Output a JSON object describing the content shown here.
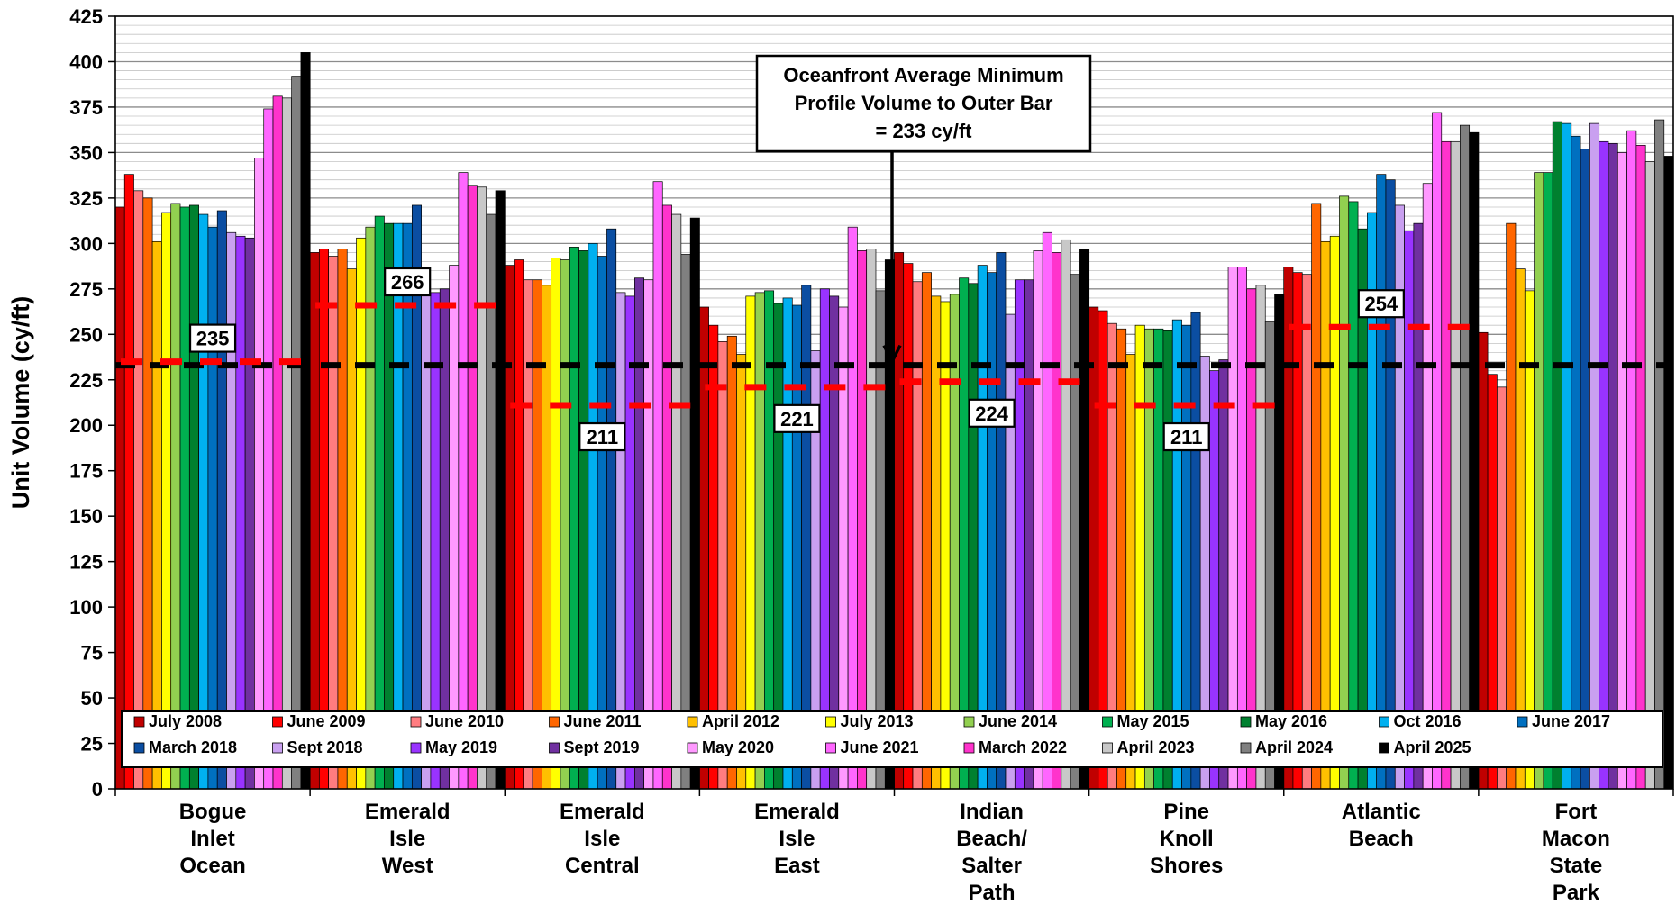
{
  "chart_data": {
    "type": "bar",
    "ylabel": "Unit Volume (cy/ft)",
    "ylim": [
      0,
      425
    ],
    "yticks": [
      0,
      25,
      50,
      75,
      100,
      125,
      150,
      175,
      200,
      225,
      250,
      275,
      300,
      325,
      350,
      375,
      400,
      425
    ],
    "grid": "horizontal",
    "legend_position": "bottom",
    "categories": [
      [
        "Bogue",
        "Inlet",
        "Ocean"
      ],
      [
        "Emerald",
        "Isle",
        "West"
      ],
      [
        "Emerald",
        "Isle",
        "Central"
      ],
      [
        "Emerald",
        "Isle",
        "East"
      ],
      [
        "Indian",
        "Beach/",
        "Salter",
        "Path"
      ],
      [
        "Pine",
        "Knoll",
        "Shores"
      ],
      [
        "Atlantic",
        "Beach"
      ],
      [
        "Fort",
        "Macon",
        "State",
        "Park"
      ]
    ],
    "series": [
      {
        "name": "July 2008",
        "color": "#C00000",
        "values": [
          320,
          295,
          288,
          265,
          295,
          265,
          287,
          251
        ]
      },
      {
        "name": "June 2009",
        "color": "#FF0000",
        "values": [
          338,
          297,
          291,
          255,
          289,
          263,
          284,
          228
        ]
      },
      {
        "name": "June 2010",
        "color": "#FF7C80",
        "values": [
          329,
          293,
          280,
          246,
          279,
          256,
          283,
          221
        ]
      },
      {
        "name": "June 2011",
        "color": "#FF6600",
        "values": [
          325,
          297,
          280,
          249,
          284,
          253,
          322,
          311
        ]
      },
      {
        "name": "April 2012",
        "color": "#FFC000",
        "values": [
          301,
          286,
          277,
          239,
          271,
          239,
          301,
          286
        ]
      },
      {
        "name": "July 2013",
        "color": "#FFFF00",
        "values": [
          317,
          303,
          292,
          271,
          268,
          255,
          304,
          274
        ]
      },
      {
        "name": "June 2014",
        "color": "#92D050",
        "values": [
          322,
          309,
          291,
          273,
          272,
          253,
          326,
          339
        ]
      },
      {
        "name": "May 2015",
        "color": "#00B050",
        "values": [
          320,
          315,
          298,
          274,
          281,
          253,
          323,
          339
        ]
      },
      {
        "name": "May 2016",
        "color": "#00802F",
        "values": [
          321,
          311,
          296,
          267,
          278,
          252,
          308,
          367
        ]
      },
      {
        "name": "Oct 2016",
        "color": "#00B0F0",
        "values": [
          316,
          311,
          300,
          270,
          288,
          258,
          317,
          366
        ]
      },
      {
        "name": "June 2017",
        "color": "#0070C0",
        "values": [
          309,
          311,
          293,
          266,
          284,
          255,
          338,
          359
        ]
      },
      {
        "name": "March 2018",
        "color": "#0B4EA2",
        "values": [
          318,
          321,
          308,
          277,
          295,
          262,
          335,
          352
        ]
      },
      {
        "name": "Sept 2018",
        "color": "#C9A0F0",
        "values": [
          306,
          272,
          273,
          241,
          261,
          238,
          321,
          366
        ]
      },
      {
        "name": "May 2019",
        "color": "#9933FF",
        "values": [
          304,
          273,
          271,
          275,
          280,
          230,
          307,
          356
        ]
      },
      {
        "name": "Sept 2019",
        "color": "#7030A0",
        "values": [
          303,
          275,
          281,
          271,
          280,
          236,
          311,
          355
        ]
      },
      {
        "name": "May 2020",
        "color": "#FF99FF",
        "values": [
          347,
          288,
          280,
          265,
          296,
          287,
          333,
          350
        ]
      },
      {
        "name": "June 2021",
        "color": "#FF66FF",
        "values": [
          374,
          339,
          334,
          309,
          306,
          287,
          372,
          362
        ]
      },
      {
        "name": "March 2022",
        "color": "#FF33CC",
        "values": [
          381,
          332,
          321,
          296,
          295,
          275,
          356,
          354
        ]
      },
      {
        "name": "April 2023",
        "color": "#C8C8C8",
        "values": [
          380,
          331,
          316,
          297,
          302,
          277,
          356,
          345
        ]
      },
      {
        "name": "April 2024",
        "color": "#808080",
        "values": [
          392,
          316,
          294,
          274,
          283,
          257,
          365,
          368
        ]
      },
      {
        "name": "April 2025",
        "color": "#000000",
        "values": [
          405,
          329,
          314,
          291,
          297,
          272,
          361,
          348
        ]
      }
    ],
    "reference_lines": {
      "oceanfront_average": {
        "value": 233,
        "color": "#000000"
      },
      "reach_minimums": [
        {
          "category_index": 0,
          "value": 235,
          "label": "235"
        },
        {
          "category_index": 1,
          "value": 266,
          "label": "266"
        },
        {
          "category_index": 2,
          "value": 211,
          "label": "211"
        },
        {
          "category_index": 3,
          "value": 221,
          "label": "221"
        },
        {
          "category_index": 4,
          "value": 224,
          "label": "224"
        },
        {
          "category_index": 5,
          "value": 211,
          "label": "211"
        },
        {
          "category_index": 6,
          "value": 254,
          "label": "254"
        }
      ],
      "reach_minimum_color": "#FF0000"
    },
    "annotation": {
      "lines": [
        "Oceanfront Average Minimum",
        "Profile Volume to Outer Bar",
        "= 233 cy/ft"
      ],
      "points_to_value": 233
    }
  }
}
